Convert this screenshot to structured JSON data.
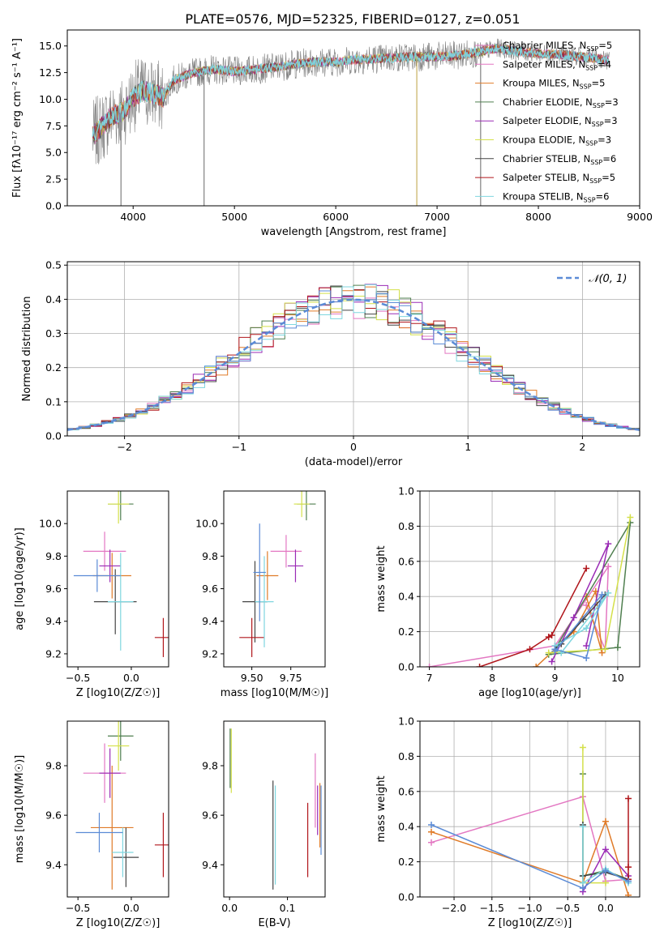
{
  "figure_title": "PLATE=0576, MJD=52325, FIBERID=0127, z=0.051",
  "colors": {
    "Chabrier MILES": "#e377c2",
    "Salpeter MILES": "#e377c2",
    "Kroupa MILES": "#e07b28",
    "Chabrier ELODIE": "#4f7f4f",
    "Salpeter ELODIE": "#9a2bb5",
    "Kroupa ELODIE": "#d4e04a",
    "Chabrier STELIB": "#444444",
    "Salpeter STELIB": "#b0161b",
    "Kroupa STELIB": "#7fd6df",
    "data_gray": "#808080",
    "normal_curve": "#5b8bd6"
  },
  "chart_data": [
    {
      "id": "spectrum",
      "type": "line",
      "title": "",
      "xlabel": "wavelength [Angstrom, rest frame]",
      "ylabel": "Flux [fλ10⁻¹⁷ erg cm⁻² s⁻¹ A⁻¹]",
      "xlim": [
        3350,
        9000
      ],
      "ylim": [
        0,
        16.5
      ],
      "xticks": [
        4000,
        5000,
        6000,
        7000,
        8000,
        9000
      ],
      "yticks": [
        0.0,
        2.5,
        5.0,
        7.5,
        10.0,
        12.5,
        15.0
      ],
      "grid": false,
      "legend_placement": "right",
      "series": [
        {
          "name": "Chabrier MILES, N_SSP=5",
          "label_main": "Chabrier MILES, N",
          "label_sub": "SSP",
          "label_tail": "=5",
          "color": "#e377c2"
        },
        {
          "name": "Salpeter MILES, N_SSP=4",
          "label_main": "Salpeter MILES, N",
          "label_sub": "SSP",
          "label_tail": "=4",
          "color": "#e377c2"
        },
        {
          "name": "Kroupa MILES, N_SSP=5",
          "label_main": "Kroupa MILES, N",
          "label_sub": "SSP",
          "label_tail": "=5",
          "color": "#e07b28"
        },
        {
          "name": "Chabrier ELODIE, N_SSP=3",
          "label_main": "Chabrier ELODIE, N",
          "label_sub": "SSP",
          "label_tail": "=3",
          "color": "#4f7f4f"
        },
        {
          "name": "Salpeter ELODIE, N_SSP=3",
          "label_main": "Salpeter ELODIE, N",
          "label_sub": "SSP",
          "label_tail": "=3",
          "color": "#9a2bb5"
        },
        {
          "name": "Kroupa ELODIE, N_SSP=3",
          "label_main": "Kroupa ELODIE, N",
          "label_sub": "SSP",
          "label_tail": "=3",
          "color": "#d4e04a"
        },
        {
          "name": "Chabrier STELIB, N_SSP=6",
          "label_main": "Chabrier STELIB, N",
          "label_sub": "SSP",
          "label_tail": "=6",
          "color": "#444444"
        },
        {
          "name": "Salpeter STELIB, N_SSP=5",
          "label_main": "Salpeter STELIB, N",
          "label_sub": "SSP",
          "label_tail": "=5",
          "color": "#b0161b"
        },
        {
          "name": "Kroupa STELIB, N_SSP=6",
          "label_main": "Kroupa STELIB, N",
          "label_sub": "SSP",
          "label_tail": "=6",
          "color": "#7fd6df"
        }
      ],
      "continuum": {
        "x": [
          3600,
          3700,
          3800,
          3900,
          4000,
          4100,
          4200,
          4300,
          4400,
          4600,
          4800,
          5000,
          5200,
          5400,
          5600,
          5800,
          6000,
          6200,
          6400,
          6600,
          6800,
          7000,
          7200,
          7400,
          7600,
          7800,
          8000,
          8200,
          8400,
          8600,
          8700
        ],
        "y": [
          6.5,
          7.5,
          8.5,
          8.8,
          10.2,
          10.8,
          10.5,
          10.2,
          11.8,
          12.5,
          12.8,
          12.6,
          12.8,
          13.0,
          13.3,
          13.5,
          13.5,
          13.7,
          13.8,
          13.9,
          14.0,
          14.0,
          14.1,
          14.4,
          14.8,
          14.5,
          14.3,
          14.2,
          14.0,
          13.8,
          13.6
        ]
      },
      "dips": [
        {
          "x": 4700,
          "y": 0
        },
        {
          "x": 6800,
          "y": 0
        },
        {
          "x": 7430,
          "y": 0
        },
        {
          "x": 3880,
          "y": 0
        }
      ]
    },
    {
      "id": "residuals",
      "type": "histogram",
      "title": "",
      "xlabel": "(data-model)/error",
      "ylabel": "Normed distribution",
      "xlim": [
        -2.5,
        2.5
      ],
      "ylim": [
        0,
        0.51
      ],
      "xticks": [
        -2,
        -1,
        0,
        1,
        2
      ],
      "yticks": [
        0.0,
        0.1,
        0.2,
        0.3,
        0.4,
        0.5
      ],
      "grid": true,
      "legend_placement": "top-right",
      "normal_label": "𝒩(0, 1)",
      "bin_width": 0.1
    },
    {
      "id": "age_vs_Z",
      "type": "scatter",
      "title": "",
      "xlabel": "Z [log10(Z/Z☉)]",
      "ylabel": "age  [log10(age/yr)]",
      "xlim": [
        -0.6,
        0.35
      ],
      "ylim": [
        9.12,
        10.2
      ],
      "xticks": [
        -0.5,
        0.0
      ],
      "yticks": [
        9.2,
        9.4,
        9.6,
        9.8,
        10.0
      ],
      "grid": false,
      "points": [
        {
          "color": "#e377c2",
          "x": -0.25,
          "y": 9.83,
          "xerr": 0.2,
          "yerr": 0.12
        },
        {
          "color": "#e07b28",
          "x": -0.18,
          "y": 9.68,
          "xerr": 0.18,
          "yerr": 0.14
        },
        {
          "color": "#4f7f4f",
          "x": -0.1,
          "y": 10.12,
          "xerr": 0.12,
          "yerr": 0.1
        },
        {
          "color": "#9a2bb5",
          "x": -0.2,
          "y": 9.74,
          "xerr": 0.1,
          "yerr": 0.1
        },
        {
          "color": "#d4e04a",
          "x": -0.12,
          "y": 10.12,
          "xerr": 0.1,
          "yerr": 0.12
        },
        {
          "color": "#444444",
          "x": -0.15,
          "y": 9.52,
          "xerr": 0.2,
          "yerr": 0.2
        },
        {
          "color": "#b0161b",
          "x": 0.3,
          "y": 9.3,
          "xerr": 0.08,
          "yerr": 0.12
        },
        {
          "color": "#7fd6df",
          "x": -0.1,
          "y": 9.52,
          "xerr": 0.12,
          "yerr": 0.3
        },
        {
          "color": "#5b8bd6",
          "x": -0.32,
          "y": 9.68,
          "xerr": 0.22,
          "yerr": 0.1
        }
      ]
    },
    {
      "id": "age_vs_mass",
      "type": "scatter",
      "title": "",
      "xlabel": "mass [log10(M/M☉)]",
      "ylabel": "",
      "xlim": [
        9.32,
        9.97
      ],
      "ylim": [
        9.12,
        10.2
      ],
      "xticks": [
        9.5,
        9.75
      ],
      "yticks": [
        9.2,
        9.4,
        9.6,
        9.8,
        10.0
      ],
      "grid": false,
      "points": [
        {
          "color": "#e377c2",
          "x": 9.72,
          "y": 9.83,
          "xerr": 0.1,
          "yerr": 0.1
        },
        {
          "color": "#e07b28",
          "x": 9.6,
          "y": 9.68,
          "xerr": 0.07,
          "yerr": 0.15
        },
        {
          "color": "#4f7f4f",
          "x": 9.85,
          "y": 10.12,
          "xerr": 0.06,
          "yerr": 0.1
        },
        {
          "color": "#9a2bb5",
          "x": 9.78,
          "y": 9.74,
          "xerr": 0.05,
          "yerr": 0.1
        },
        {
          "color": "#d4e04a",
          "x": 9.82,
          "y": 10.12,
          "xerr": 0.05,
          "yerr": 0.08
        },
        {
          "color": "#444444",
          "x": 9.52,
          "y": 9.52,
          "xerr": 0.08,
          "yerr": 0.25
        },
        {
          "color": "#b0161b",
          "x": 9.5,
          "y": 9.3,
          "xerr": 0.08,
          "yerr": 0.12
        },
        {
          "color": "#7fd6df",
          "x": 9.58,
          "y": 9.52,
          "xerr": 0.06,
          "yerr": 0.28
        },
        {
          "color": "#5b8bd6",
          "x": 9.55,
          "y": 9.7,
          "xerr": 0.04,
          "yerr": 0.3
        }
      ]
    },
    {
      "id": "weight_vs_age",
      "type": "line",
      "title": "",
      "xlabel": "age  [log10(age/yr)]",
      "ylabel": "mass weight",
      "xlim": [
        6.85,
        10.35
      ],
      "ylim": [
        0,
        1.0
      ],
      "xticks": [
        7,
        8,
        9,
        10
      ],
      "yticks": [
        0.0,
        0.2,
        0.4,
        0.6,
        0.8,
        1.0
      ],
      "grid": true,
      "series": [
        {
          "color": "#e377c2",
          "x": [
            7.0,
            9.0,
            9.85,
            9.8,
            9.5
          ],
          "y": [
            0.0,
            0.12,
            0.57,
            0.1,
            0.35
          ]
        },
        {
          "color": "#e07b28",
          "x": [
            8.7,
            9.3,
            9.65,
            9.75,
            9.5
          ],
          "y": [
            0.0,
            0.2,
            0.43,
            0.08,
            0.4
          ]
        },
        {
          "color": "#4f7f4f",
          "x": [
            8.9,
            10.0,
            10.2,
            9.0
          ],
          "y": [
            0.07,
            0.11,
            0.82,
            0.1
          ]
        },
        {
          "color": "#9a2bb5",
          "x": [
            8.95,
            9.3,
            9.85,
            9.5
          ],
          "y": [
            0.03,
            0.28,
            0.7,
            0.12
          ]
        },
        {
          "color": "#d4e04a",
          "x": [
            8.9,
            9.8,
            10.2
          ],
          "y": [
            0.08,
            0.1,
            0.85
          ]
        },
        {
          "color": "#444444",
          "x": [
            9.0,
            9.45,
            9.8,
            9.1
          ],
          "y": [
            0.1,
            0.27,
            0.41,
            0.13
          ]
        },
        {
          "color": "#b0161b",
          "x": [
            7.8,
            8.6,
            8.9,
            8.95,
            9.5
          ],
          "y": [
            0.0,
            0.1,
            0.17,
            0.18,
            0.56
          ]
        },
        {
          "color": "#7fd6df",
          "x": [
            9.0,
            9.5,
            9.85,
            9.1
          ],
          "y": [
            0.12,
            0.22,
            0.42,
            0.08
          ]
        },
        {
          "color": "#5b8bd6",
          "x": [
            9.0,
            9.5,
            9.75,
            9.0
          ],
          "y": [
            0.1,
            0.05,
            0.41,
            0.09
          ]
        }
      ]
    },
    {
      "id": "mass_vs_Z",
      "type": "scatter",
      "title": "",
      "xlabel": "Z [log10(Z/Z☉)]",
      "ylabel": "mass [log10(M/M☉)]",
      "xlim": [
        -0.6,
        0.35
      ],
      "ylim": [
        9.27,
        9.98
      ],
      "xticks": [
        -0.5,
        0.0
      ],
      "yticks": [
        9.4,
        9.6,
        9.8
      ],
      "grid": false,
      "points": [
        {
          "color": "#e377c2",
          "x": -0.25,
          "y": 9.77,
          "xerr": 0.2,
          "yerr": 0.12
        },
        {
          "color": "#e07b28",
          "x": -0.18,
          "y": 9.55,
          "xerr": 0.2,
          "yerr": 0.25
        },
        {
          "color": "#4f7f4f",
          "x": -0.1,
          "y": 9.92,
          "xerr": 0.12,
          "yerr": 0.1
        },
        {
          "color": "#9a2bb5",
          "x": -0.2,
          "y": 9.77,
          "xerr": 0.1,
          "yerr": 0.1
        },
        {
          "color": "#d4e04a",
          "x": -0.12,
          "y": 9.88,
          "xerr": 0.1,
          "yerr": 0.1
        },
        {
          "color": "#444444",
          "x": -0.05,
          "y": 9.43,
          "xerr": 0.12,
          "yerr": 0.12
        },
        {
          "color": "#b0161b",
          "x": 0.3,
          "y": 9.48,
          "xerr": 0.08,
          "yerr": 0.13
        },
        {
          "color": "#7fd6df",
          "x": -0.08,
          "y": 9.45,
          "xerr": 0.1,
          "yerr": 0.1
        },
        {
          "color": "#5b8bd6",
          "x": -0.3,
          "y": 9.53,
          "xerr": 0.22,
          "yerr": 0.08
        }
      ]
    },
    {
      "id": "mass_vs_ebv",
      "type": "scatter",
      "title": "",
      "xlabel": "E(B-V)",
      "ylabel": "",
      "xlim": [
        -0.01,
        0.165
      ],
      "ylim": [
        9.27,
        9.98
      ],
      "xticks": [
        0.0,
        0.1
      ],
      "yticks": [
        9.4,
        9.6,
        9.8
      ],
      "grid": false,
      "points": [
        {
          "color": "#e377c2",
          "x": 0.148,
          "y": 9.7,
          "xerr": 0.0,
          "yerr": 0.15
        },
        {
          "color": "#e07b28",
          "x": 0.156,
          "y": 9.6,
          "xerr": 0.0,
          "yerr": 0.13
        },
        {
          "color": "#4f7f4f",
          "x": 0.001,
          "y": 9.83,
          "xerr": 0.0,
          "yerr": 0.12
        },
        {
          "color": "#9a2bb5",
          "x": 0.152,
          "y": 9.62,
          "xerr": 0.0,
          "yerr": 0.1
        },
        {
          "color": "#d4e04a",
          "x": 0.003,
          "y": 9.82,
          "xerr": 0.0,
          "yerr": 0.13
        },
        {
          "color": "#444444",
          "x": 0.075,
          "y": 9.52,
          "xerr": 0.0,
          "yerr": 0.22
        },
        {
          "color": "#b0161b",
          "x": 0.135,
          "y": 9.5,
          "xerr": 0.0,
          "yerr": 0.15
        },
        {
          "color": "#7fd6df",
          "x": 0.079,
          "y": 9.52,
          "xerr": 0.0,
          "yerr": 0.2
        },
        {
          "color": "#5b8bd6",
          "x": 0.158,
          "y": 9.58,
          "xerr": 0.0,
          "yerr": 0.14
        }
      ]
    },
    {
      "id": "weight_vs_Z",
      "type": "line",
      "title": "",
      "xlabel": "Z [log10(Z/Z☉)]",
      "ylabel": "mass weight",
      "xlim": [
        -2.45,
        0.45
      ],
      "ylim": [
        0,
        1.0
      ],
      "xticks": [
        -2.0,
        -1.5,
        -1.0,
        -0.5,
        0.0
      ],
      "yticks": [
        0.0,
        0.2,
        0.4,
        0.6,
        0.8,
        1.0
      ],
      "grid": true,
      "series": [
        {
          "color": "#e377c2",
          "x": [
            -2.3,
            -0.3,
            0.0,
            0.3
          ],
          "y": [
            0.31,
            0.57,
            0.09,
            0.1
          ]
        },
        {
          "color": "#e07b28",
          "x": [
            -2.3,
            -0.3,
            0.0,
            0.3
          ],
          "y": [
            0.37,
            0.08,
            0.43,
            0.01
          ]
        },
        {
          "color": "#4f7f4f",
          "x": [
            -0.3,
            -0.3,
            0.0,
            0.3
          ],
          "y": [
            0.7,
            0.12,
            0.15,
            0.1
          ]
        },
        {
          "color": "#9a2bb5",
          "x": [
            -0.3,
            0.0,
            0.3
          ],
          "y": [
            0.03,
            0.27,
            0.12
          ]
        },
        {
          "color": "#d4e04a",
          "x": [
            -0.3,
            -0.3,
            0.0
          ],
          "y": [
            0.85,
            0.08,
            0.08
          ]
        },
        {
          "color": "#444444",
          "x": [
            -0.3,
            -0.3,
            0.0,
            0.3
          ],
          "y": [
            0.41,
            0.12,
            0.14,
            0.1
          ]
        },
        {
          "color": "#b0161b",
          "x": [
            0.3,
            0.3,
            0.3
          ],
          "y": [
            0.56,
            0.17,
            0.1
          ]
        },
        {
          "color": "#7fd6df",
          "x": [
            -0.3,
            -0.3,
            0.0,
            0.3
          ],
          "y": [
            0.4,
            0.08,
            0.16,
            0.08
          ]
        },
        {
          "color": "#5b8bd6",
          "x": [
            -2.3,
            -0.3,
            0.0,
            0.3
          ],
          "y": [
            0.41,
            0.05,
            0.15,
            0.09
          ]
        }
      ]
    }
  ]
}
